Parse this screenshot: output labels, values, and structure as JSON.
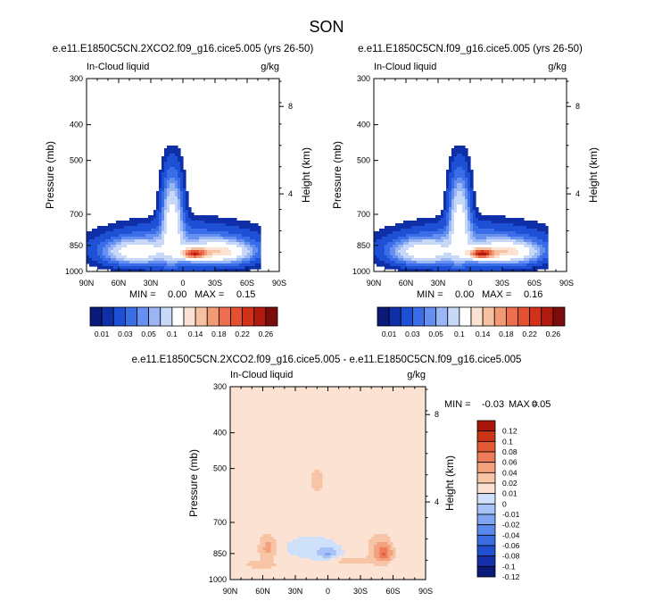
{
  "figure_title": "SON",
  "colors": {
    "abs_palette": [
      "#0a1a78",
      "#0f2fa8",
      "#1e50d6",
      "#3a6ee8",
      "#6690f0",
      "#9ab6f4",
      "#c8d8f8",
      "#ffffff",
      "#fbe2d2",
      "#f7c0a0",
      "#f29a75",
      "#ec7050",
      "#e4502f",
      "#d03219",
      "#b01a0f",
      "#7a0c0c"
    ],
    "diff_palette": [
      "#0a1a78",
      "#1430a8",
      "#2050d0",
      "#3a6ee0",
      "#5a88ec",
      "#7fa4f2",
      "#a6c2f6",
      "#cfe0fb",
      "#fbe2d2",
      "#f8c4a6",
      "#f4a27e",
      "#ee7c58",
      "#e45834",
      "#cc3418",
      "#a8160c"
    ]
  },
  "chart_data": [
    {
      "type": "heatmap",
      "id": "panel-2xco2",
      "title": "e.e11.E1850C5CN.2XCO2.f09_g16.cice5.005 (yrs 26-50)",
      "left_label": "In-Cloud liquid",
      "right_label": "g/kg",
      "ylabel": "Pressure (mb)",
      "y2label": "Height (km)",
      "x_ticks": [
        "90N",
        "60N",
        "30N",
        "0",
        "30S",
        "60S",
        "90S"
      ],
      "x_values": [
        90,
        60,
        30,
        0,
        -30,
        -60,
        -90
      ],
      "y_ticks": [
        "300",
        "400",
        "500",
        "700",
        "850",
        "1000"
      ],
      "y_values": [
        300,
        400,
        500,
        700,
        850,
        1000
      ],
      "y2_ticks": [
        "8",
        "4"
      ],
      "y2_pressure": [
        357,
        616
      ],
      "ylim": [
        300,
        1000
      ],
      "stats": {
        "min_label": "MIN =",
        "min": "0.00",
        "max_label": "MAX =",
        "max": "0.15"
      },
      "colorbar_labels": [
        "0.01",
        "0.03",
        "0.05",
        "0.1",
        "0.14",
        "0.18",
        "0.22",
        "0.26"
      ],
      "contour_levels": [
        0.005,
        0.01,
        0.02,
        0.03,
        0.04,
        0.05,
        0.07,
        0.1,
        0.12,
        0.14,
        0.16,
        0.18,
        0.2,
        0.22,
        0.26
      ],
      "features": [
        {
          "lat": 10,
          "p": 720,
          "value": 0.08,
          "wlat": 9,
          "wp": 170
        },
        {
          "lat": 45,
          "p": 885,
          "value": 0.07,
          "wlat": 26,
          "wp": 60
        },
        {
          "lat": -35,
          "p": 885,
          "value": 0.09,
          "wlat": 26,
          "wp": 55
        },
        {
          "lat": -10,
          "p": 895,
          "value": 0.15,
          "wlat": 11,
          "wp": 28
        },
        {
          "lat": 0,
          "p": 860,
          "value": 0.04,
          "wlat": 70,
          "wp": 110
        }
      ]
    },
    {
      "type": "heatmap",
      "id": "panel-control",
      "title": "e.e11.E1850C5CN.f09_g16.cice5.005 (yrs 26-50)",
      "left_label": "In-Cloud liquid",
      "right_label": "g/kg",
      "ylabel": "Pressure (mb)",
      "y2label": "Height (km)",
      "x_ticks": [
        "90N",
        "60N",
        "30N",
        "0",
        "30S",
        "60S",
        "90S"
      ],
      "x_values": [
        90,
        60,
        30,
        0,
        -30,
        -60,
        -90
      ],
      "y_ticks": [
        "300",
        "400",
        "500",
        "700",
        "850",
        "1000"
      ],
      "y_values": [
        300,
        400,
        500,
        700,
        850,
        1000
      ],
      "y2_ticks": [
        "8",
        "4"
      ],
      "y2_pressure": [
        357,
        616
      ],
      "ylim": [
        300,
        1000
      ],
      "stats": {
        "min_label": "MIN =",
        "min": "0.00",
        "max_label": "MAX =",
        "max": "0.16"
      },
      "colorbar_labels": [
        "0.01",
        "0.03",
        "0.05",
        "0.1",
        "0.14",
        "0.18",
        "0.22",
        "0.26"
      ],
      "contour_levels": [
        0.005,
        0.01,
        0.02,
        0.03,
        0.04,
        0.05,
        0.07,
        0.1,
        0.12,
        0.14,
        0.16,
        0.18,
        0.2,
        0.22,
        0.26
      ],
      "features": [
        {
          "lat": 10,
          "p": 720,
          "value": 0.08,
          "wlat": 9,
          "wp": 170
        },
        {
          "lat": 45,
          "p": 885,
          "value": 0.07,
          "wlat": 26,
          "wp": 60
        },
        {
          "lat": -35,
          "p": 885,
          "value": 0.09,
          "wlat": 26,
          "wp": 55
        },
        {
          "lat": -10,
          "p": 895,
          "value": 0.16,
          "wlat": 11,
          "wp": 28
        },
        {
          "lat": 0,
          "p": 860,
          "value": 0.04,
          "wlat": 70,
          "wp": 110
        }
      ]
    },
    {
      "type": "heatmap",
      "id": "panel-diff",
      "title": "e.e11.E1850C5CN.2XCO2.f09_g16.cice5.005 - e.e11.E1850C5CN.f09_g16.cice5.005",
      "left_label": "In-Cloud liquid",
      "right_label": "g/kg",
      "ylabel": "Pressure (mb)",
      "y2label": "Height (km)",
      "x_ticks": [
        "90N",
        "60N",
        "30N",
        "0",
        "30S",
        "60S",
        "90S"
      ],
      "x_values": [
        90,
        60,
        30,
        0,
        -30,
        -60,
        -90
      ],
      "y_ticks": [
        "300",
        "400",
        "500",
        "700",
        "850",
        "1000"
      ],
      "y_values": [
        300,
        400,
        500,
        700,
        850,
        1000
      ],
      "y2_ticks": [
        "8",
        "4"
      ],
      "y2_pressure": [
        357,
        616
      ],
      "ylim": [
        300,
        1000
      ],
      "stats": {
        "min_label": "MIN =",
        "min": "-0.03",
        "max_label": "MAX =",
        "max": "0.05"
      },
      "colorbar_labels": [
        "0.12",
        "0.1",
        "0.08",
        "0.06",
        "0.04",
        "0.02",
        "0.01",
        "0",
        "-0.01",
        "-0.02",
        "-0.04",
        "-0.06",
        "-0.08",
        "-0.1",
        "-0.12"
      ],
      "background_value": 0.005,
      "features": [
        {
          "lat": 55,
          "p": 820,
          "value": 0.02,
          "wlat": 8,
          "wp": 60
        },
        {
          "lat": -52,
          "p": 850,
          "value": 0.04,
          "wlat": 6,
          "wp": 35
        },
        {
          "lat": -48,
          "p": 830,
          "value": 0.02,
          "wlat": 10,
          "wp": 70
        },
        {
          "lat": 10,
          "p": 540,
          "value": 0.01,
          "wlat": 7,
          "wp": 40
        },
        {
          "lat": 15,
          "p": 820,
          "value": -0.01,
          "wlat": 28,
          "wp": 70
        },
        {
          "lat": 0,
          "p": 850,
          "value": -0.02,
          "wlat": 10,
          "wp": 30
        },
        {
          "lat": -20,
          "p": 890,
          "value": 0.01,
          "wlat": 20,
          "wp": 20
        },
        {
          "lat": 62,
          "p": 910,
          "value": 0.01,
          "wlat": 15,
          "wp": 25
        }
      ]
    }
  ]
}
